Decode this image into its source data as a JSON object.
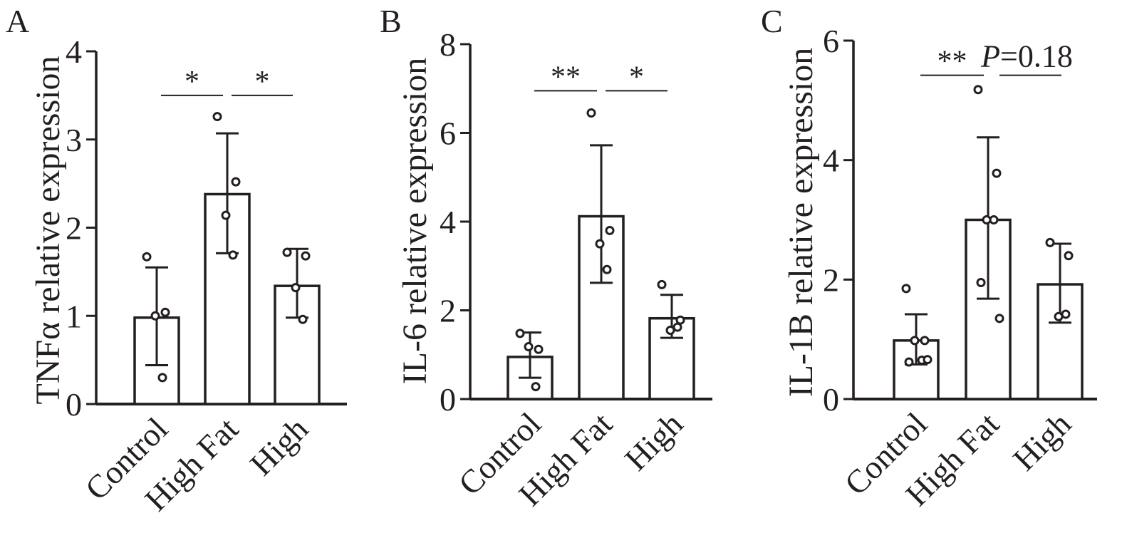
{
  "chart_data": [
    {
      "type": "bar",
      "panel": "A",
      "ylabel": "TNFα relative expression",
      "ylim": [
        0,
        4
      ],
      "yticks": [
        "0",
        "1",
        "2",
        "3",
        "4"
      ],
      "categories": [
        "Control",
        "High Fat",
        "High"
      ],
      "values": [
        0.98,
        2.38,
        1.34
      ],
      "error_upper": [
        1.55,
        3.07,
        1.76
      ],
      "error_lower": [
        0.44,
        1.71,
        0.98
      ],
      "points": [
        [
          1.67,
          1.04,
          1.0,
          0.3
        ],
        [
          3.26,
          2.52,
          2.14,
          1.69
        ],
        [
          1.72,
          1.68,
          1.32,
          0.96
        ]
      ],
      "comparisons": [
        {
          "from": 0,
          "to": 1,
          "label": "*",
          "y": 3.5
        },
        {
          "from": 1,
          "to": 2,
          "label": "*",
          "y": 3.5
        }
      ]
    },
    {
      "type": "bar",
      "panel": "B",
      "ylabel": "IL-6 relative expression",
      "ylim": [
        0,
        8
      ],
      "yticks": [
        "0",
        "2",
        "4",
        "6",
        "8"
      ],
      "categories": [
        "Control",
        "High Fat",
        "High"
      ],
      "values": [
        0.95,
        4.12,
        1.82
      ],
      "error_upper": [
        1.5,
        5.72,
        2.35
      ],
      "error_lower": [
        0.48,
        2.62,
        1.38
      ],
      "points": [
        [
          1.48,
          1.12,
          1.18,
          0.28
        ],
        [
          6.45,
          3.8,
          3.5,
          2.92
        ],
        [
          2.58,
          1.78,
          1.55,
          1.62
        ]
      ],
      "comparisons": [
        {
          "from": 0,
          "to": 1,
          "label": "**",
          "y": 6.95
        },
        {
          "from": 1,
          "to": 2,
          "label": "*",
          "y": 6.95
        }
      ]
    },
    {
      "type": "bar",
      "panel": "C",
      "ylabel": "IL-1B relative expression",
      "ylim": [
        0,
        6
      ],
      "yticks": [
        "0",
        "2",
        "4",
        "6"
      ],
      "categories": [
        "Control",
        "High Fat",
        "High"
      ],
      "values": [
        0.98,
        3.0,
        1.92
      ],
      "error_upper": [
        1.42,
        4.38,
        2.6
      ],
      "error_lower": [
        0.58,
        1.68,
        1.28
      ],
      "points": [
        [
          1.85,
          0.98,
          0.98,
          0.65,
          0.62,
          0.66
        ],
        [
          5.18,
          3.78,
          3.0,
          3.0,
          1.95,
          1.35
        ],
        [
          2.62,
          2.4,
          1.38,
          1.42
        ]
      ],
      "comparisons": [
        {
          "from": 0,
          "to": 1,
          "label": "**",
          "y": 5.42
        },
        {
          "from": 1,
          "to": 2,
          "label": "P=0.18",
          "y": 5.42
        }
      ]
    }
  ]
}
